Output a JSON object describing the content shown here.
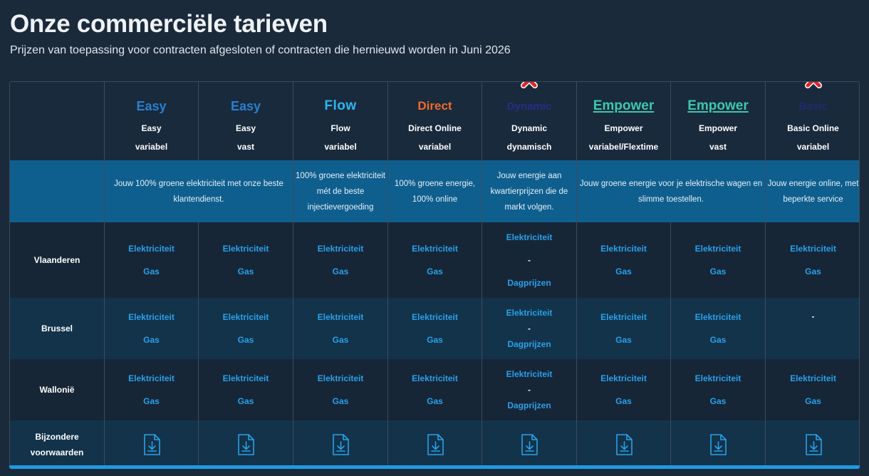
{
  "page": {
    "title": "Onze commerciële tarieven",
    "subtitle": "Prijzen van toepassing voor contracten afgesloten of contracten die hernieuwd worden in Juni 2026"
  },
  "products": [
    {
      "logo": "Easy",
      "name": "Easy",
      "type": "variabel"
    },
    {
      "logo": "Easy",
      "name": "Easy",
      "type": "vast"
    },
    {
      "logo": "Flow",
      "name": "Flow",
      "type": "variabel"
    },
    {
      "logo": "Direct",
      "name": "Direct Online",
      "type": "variabel"
    },
    {
      "logo": "Dynamic",
      "name": "Dynamic",
      "type": "dynamisch"
    },
    {
      "logo": "Empower",
      "name": "Empower",
      "type": "variabel/Flextime"
    },
    {
      "logo": "Empower",
      "name": "Empower",
      "type": "vast"
    },
    {
      "logo": "Basic",
      "name": "Basic Online",
      "type": "variabel"
    }
  ],
  "descriptions": {
    "easy": "Jouw 100% groene elektriciteit met onze beste klantendienst.",
    "flow": "100% groene elektriciteit mét de beste injectievergoeding",
    "direct": "100% groene energie, 100% online",
    "dynamic": "Jouw energie aan kwartierprijzen die de markt volgen.",
    "empower": "Jouw groene energie voor je elektrische wagen en slimme toestellen.",
    "basic": "Jouw energie online, met beperkte service"
  },
  "regions": {
    "vlaanderen": "Vlaanderen",
    "brussel": "Brussel",
    "wallonie": "Wallonië",
    "bijzondere": "Bijzondere voorwaarden"
  },
  "labels": {
    "elektriciteit": "Elektriciteit",
    "gas": "Gas",
    "dash": "-",
    "dagprijzen": "Dagprijzen"
  },
  "colors": {
    "background": "#1b2a3a",
    "accent": "#2aa0ea",
    "description_band": "#0f5f8e",
    "unavailable_mark": "#e0262a"
  },
  "icons": {
    "unavailable": "red-cross-icon",
    "document": "document-download-icon"
  }
}
